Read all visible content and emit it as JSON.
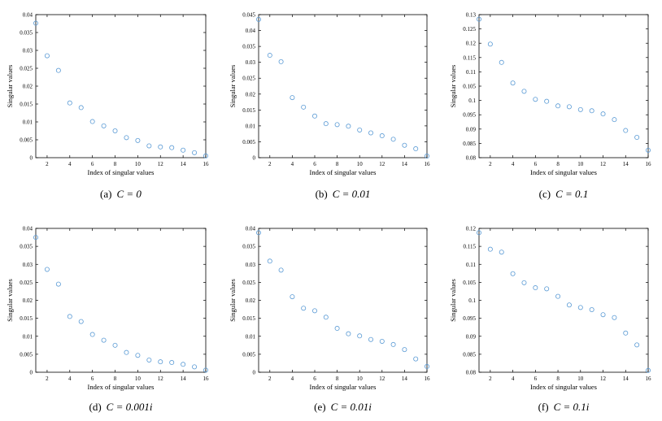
{
  "chart_data": [
    {
      "type": "scatter",
      "caption": "(a)  C = 0",
      "caption_tag": "(a)",
      "caption_expr": "C = 0",
      "xlabel": "Index of singular values",
      "ylabel": "Singular values",
      "xlim": [
        1,
        16
      ],
      "ylim": [
        0,
        0.04
      ],
      "xticks": [
        2,
        4,
        6,
        8,
        10,
        12,
        14,
        16
      ],
      "yticks": [
        0,
        0.005,
        0.01,
        0.015,
        0.02,
        0.025,
        0.03,
        0.035,
        0.04
      ],
      "ytick_labels": [
        "0",
        "0.005",
        "0.01",
        "0.015",
        "0.02",
        "0.025",
        "0.03",
        "0.035",
        "0.04"
      ],
      "x": [
        1,
        2,
        3,
        4,
        5,
        6,
        7,
        8,
        9,
        10,
        11,
        12,
        13,
        14,
        15,
        16
      ],
      "y": [
        0.0376,
        0.0285,
        0.0244,
        0.0153,
        0.014,
        0.0101,
        0.0089,
        0.0075,
        0.0056,
        0.0048,
        0.0033,
        0.003,
        0.0028,
        0.0021,
        0.0014,
        0.0005
      ]
    },
    {
      "type": "scatter",
      "caption": "(b)  C = 0.01",
      "caption_tag": "(b)",
      "caption_expr": "C = 0.01",
      "xlabel": "Index of singular values",
      "ylabel": "Singular values",
      "xlim": [
        1,
        16
      ],
      "ylim": [
        0,
        0.045
      ],
      "xticks": [
        2,
        4,
        6,
        8,
        10,
        12,
        14,
        16
      ],
      "yticks": [
        0,
        0.005,
        0.01,
        0.015,
        0.02,
        0.025,
        0.03,
        0.035,
        0.04,
        0.045
      ],
      "ytick_labels": [
        "0",
        "0.005",
        "0.01",
        "0.015",
        "0.02",
        "0.025",
        "0.03",
        "0.035",
        "0.04",
        "0.045"
      ],
      "x": [
        1,
        2,
        3,
        4,
        5,
        6,
        7,
        8,
        9,
        10,
        11,
        12,
        13,
        14,
        15,
        16
      ],
      "y": [
        0.0435,
        0.0322,
        0.0302,
        0.0189,
        0.0159,
        0.0131,
        0.0107,
        0.0104,
        0.0099,
        0.0087,
        0.0078,
        0.0069,
        0.0058,
        0.0039,
        0.0028,
        0.0005
      ]
    },
    {
      "type": "scatter",
      "caption": "(c)  C = 0.1",
      "caption_tag": "(c)",
      "caption_expr": "C = 0.1",
      "xlabel": "Index of singular values",
      "ylabel": "Singular values",
      "xlim": [
        1,
        16
      ],
      "ylim": [
        0.08,
        0.13
      ],
      "xticks": [
        2,
        4,
        6,
        8,
        10,
        12,
        14,
        16
      ],
      "yticks": [
        0.08,
        0.085,
        0.09,
        0.095,
        0.1,
        0.105,
        0.11,
        0.115,
        0.12,
        0.125,
        0.13
      ],
      "ytick_labels": [
        "0.08",
        "0.085",
        "0.09",
        "0.095",
        "0.1",
        "0.105",
        "0.11",
        "0.115",
        "0.12",
        "0.125",
        "0.13"
      ],
      "x": [
        1,
        2,
        3,
        4,
        5,
        6,
        7,
        8,
        9,
        10,
        11,
        12,
        13,
        14,
        15,
        16
      ],
      "y": [
        0.1284,
        0.1197,
        0.1133,
        0.1061,
        0.1032,
        0.1004,
        0.0997,
        0.0981,
        0.0978,
        0.0968,
        0.0964,
        0.0953,
        0.0933,
        0.0895,
        0.0871,
        0.0826
      ]
    },
    {
      "type": "scatter",
      "caption": "(d)  C = 0.001i",
      "caption_tag": "(d)",
      "caption_expr": "C = 0.001i",
      "xlabel": "Index of singular values",
      "ylabel": "Singular values",
      "xlim": [
        1,
        16
      ],
      "ylim": [
        0,
        0.04
      ],
      "xticks": [
        2,
        4,
        6,
        8,
        10,
        12,
        14,
        16
      ],
      "yticks": [
        0,
        0.005,
        0.01,
        0.015,
        0.02,
        0.025,
        0.03,
        0.035,
        0.04
      ],
      "ytick_labels": [
        "0",
        "0.005",
        "0.01",
        "0.015",
        "0.02",
        "0.025",
        "0.03",
        "0.035",
        "0.04"
      ],
      "x": [
        1,
        2,
        3,
        4,
        5,
        6,
        7,
        8,
        9,
        10,
        11,
        12,
        13,
        14,
        15,
        16
      ],
      "y": [
        0.0375,
        0.0286,
        0.0245,
        0.0155,
        0.0141,
        0.0105,
        0.0089,
        0.0075,
        0.0055,
        0.0047,
        0.0034,
        0.0029,
        0.0027,
        0.0022,
        0.0015,
        0.0006
      ]
    },
    {
      "type": "scatter",
      "caption": "(e)  C = 0.01i",
      "caption_tag": "(e)",
      "caption_expr": "C = 0.01i",
      "xlabel": "Index of singular values",
      "ylabel": "Singular values",
      "xlim": [
        1,
        16
      ],
      "ylim": [
        0,
        0.04
      ],
      "xticks": [
        2,
        4,
        6,
        8,
        10,
        12,
        14,
        16
      ],
      "yticks": [
        0,
        0.005,
        0.01,
        0.015,
        0.02,
        0.025,
        0.03,
        0.035,
        0.04
      ],
      "ytick_labels": [
        "0",
        "0.005",
        "0.01",
        "0.015",
        "0.02",
        "0.025",
        "0.03",
        "0.035",
        "0.04"
      ],
      "x": [
        1,
        2,
        3,
        4,
        5,
        6,
        7,
        8,
        9,
        10,
        11,
        12,
        13,
        14,
        15,
        16
      ],
      "y": [
        0.0388,
        0.0309,
        0.0284,
        0.021,
        0.0178,
        0.0171,
        0.0153,
        0.0122,
        0.0107,
        0.0101,
        0.0091,
        0.0086,
        0.0077,
        0.0063,
        0.0037,
        0.0016
      ]
    },
    {
      "type": "scatter",
      "caption": "(f)  C = 0.1i",
      "caption_tag": "(f)",
      "caption_expr": "C = 0.1i",
      "xlabel": "Index of singular values",
      "ylabel": "Singular values",
      "xlim": [
        1,
        16
      ],
      "ylim": [
        0.08,
        0.12
      ],
      "xticks": [
        2,
        4,
        6,
        8,
        10,
        12,
        14,
        16
      ],
      "yticks": [
        0.08,
        0.085,
        0.09,
        0.095,
        0.1,
        0.105,
        0.11,
        0.115,
        0.12
      ],
      "ytick_labels": [
        "0.08",
        "0.085",
        "0.09",
        "0.095",
        "0.1",
        "0.105",
        "0.11",
        "0.115",
        "0.12"
      ],
      "x": [
        1,
        2,
        3,
        4,
        5,
        6,
        7,
        8,
        9,
        10,
        11,
        12,
        13,
        14,
        15,
        16
      ],
      "y": [
        0.1188,
        0.1142,
        0.1134,
        0.1074,
        0.1049,
        0.1035,
        0.1032,
        0.1011,
        0.0987,
        0.098,
        0.0974,
        0.096,
        0.0952,
        0.0909,
        0.0876,
        0.0805
      ]
    }
  ],
  "colors": {
    "marker": "#5b9bd5",
    "axis": "#000000",
    "text": "#000000"
  }
}
